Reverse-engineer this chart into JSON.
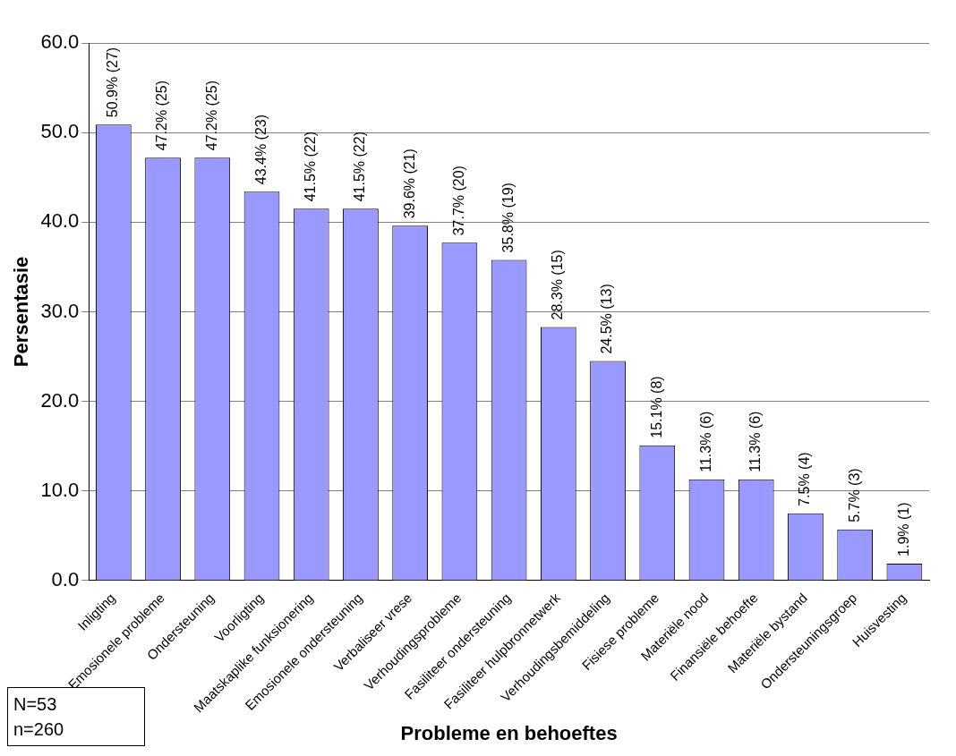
{
  "chart_data": {
    "type": "bar",
    "xlabel": "Probleme en behoeftes",
    "ylabel": "Persentasie",
    "categories": [
      "Inligting",
      "Emosionele probleme",
      "Ondersteuning",
      "Voorligting",
      "Maatskaplike funksionering",
      "Emosionele ondersteuning",
      "Verbaliseer vrese",
      "Verhoudingsprobleme",
      "Fasiliteer ondersteuning",
      "Fasiliteer hulpbronnetwerk",
      "Verhoudingsbemiddeling",
      "Fisiese probleme",
      "Materiële nood",
      "Finansiële behoefte",
      "Materiële bystand",
      "Ondersteuningsgroep",
      "Huisvesting"
    ],
    "values": [
      50.9,
      47.2,
      47.2,
      43.4,
      41.5,
      41.5,
      39.6,
      37.7,
      35.8,
      28.3,
      24.5,
      15.1,
      11.3,
      11.3,
      7.5,
      5.7,
      1.9
    ],
    "value_labels": [
      "50.9% (27)",
      "47.2% (25)",
      "47.2% (25)",
      "43.4% (23)",
      "41.5% (22)",
      "41.5% (22)",
      "39.6% (21)",
      "37.7% (20)",
      "35.8% (19)",
      "28.3% (15)",
      "24.5% (13)",
      "15.1% (8)",
      "11.3% (6)",
      "11.3% (6)",
      "7.5% (4)",
      "5.7% (3)",
      "1.9% (1)"
    ],
    "color": "#9999ff",
    "ylim": [
      0,
      60
    ],
    "yticks": [
      {
        "value": 0,
        "label": "0.0"
      },
      {
        "value": 10,
        "label": "10.0"
      },
      {
        "value": 20,
        "label": "20.0"
      },
      {
        "value": 30,
        "label": "30.0"
      },
      {
        "value": 40,
        "label": "40.0"
      },
      {
        "value": 50,
        "label": "50.0"
      },
      {
        "value": 60,
        "label": "60.0"
      }
    ],
    "grid": "y",
    "legend": false,
    "annotations": [
      "N=53",
      "n=260"
    ]
  }
}
